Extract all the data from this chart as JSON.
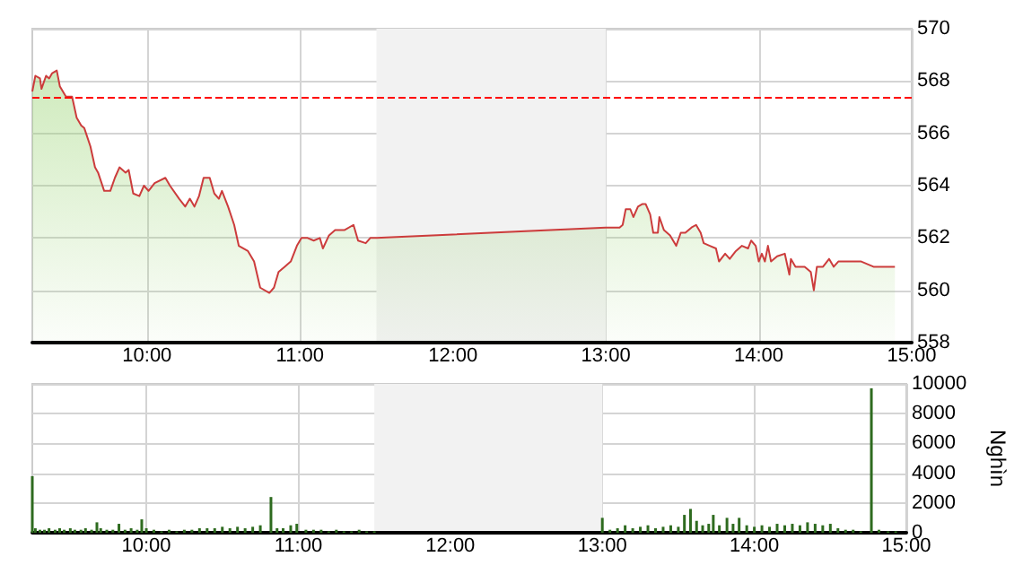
{
  "chart_data": [
    {
      "type": "area",
      "x": [
        9.25,
        9.27,
        9.3,
        9.31,
        9.34,
        9.36,
        9.38,
        9.41,
        9.43,
        9.47,
        9.51,
        9.54,
        9.57,
        9.59,
        9.63,
        9.66,
        9.68,
        9.72,
        9.76,
        9.79,
        9.82,
        9.86,
        9.88,
        9.91,
        9.95,
        9.98,
        10.01,
        10.05,
        10.12,
        10.15,
        10.21,
        10.25,
        10.28,
        10.31,
        10.34,
        10.37,
        10.41,
        10.44,
        10.47,
        10.49,
        10.53,
        10.57,
        10.6,
        10.66,
        10.7,
        10.74,
        10.8,
        10.83,
        10.86,
        10.9,
        10.94,
        10.98,
        11.01,
        11.05,
        11.09,
        11.13,
        11.15,
        11.19,
        11.23,
        11.29,
        11.35,
        11.38,
        11.43,
        11.46,
        11.5,
        13.0,
        13.09,
        13.11,
        13.13,
        13.16,
        13.18,
        13.21,
        13.24,
        13.26,
        13.29,
        13.31,
        13.34,
        13.35,
        13.38,
        13.42,
        13.46,
        13.49,
        13.52,
        13.56,
        13.59,
        13.62,
        13.64,
        13.68,
        13.72,
        13.74,
        13.78,
        13.81,
        13.85,
        13.89,
        13.93,
        13.95,
        13.98,
        14.0,
        14.02,
        14.04,
        14.06,
        14.08,
        14.12,
        14.17,
        14.2,
        14.21,
        14.24,
        14.3,
        14.34,
        14.36,
        14.38,
        14.42,
        14.46,
        14.49,
        14.52,
        14.58,
        14.67,
        14.75,
        14.89
      ],
      "series": [
        {
          "color": "#cc3c3c",
          "values": [
            567.6,
            568.2,
            568.1,
            567.7,
            568.2,
            568.1,
            568.3,
            568.4,
            567.8,
            567.4,
            567.4,
            566.6,
            566.3,
            566.2,
            565.5,
            564.7,
            564.5,
            563.8,
            563.8,
            564.3,
            564.7,
            564.5,
            564.6,
            563.7,
            563.6,
            564.0,
            563.8,
            564.1,
            564.3,
            564.0,
            563.5,
            563.2,
            563.5,
            563.2,
            563.6,
            564.3,
            564.3,
            563.7,
            563.5,
            563.8,
            563.2,
            562.5,
            561.7,
            561.5,
            561.1,
            560.1,
            559.9,
            560.1,
            560.7,
            560.9,
            561.1,
            561.7,
            562.0,
            562.0,
            561.9,
            562.0,
            561.6,
            562.1,
            562.3,
            562.3,
            562.5,
            561.9,
            561.8,
            562.0,
            562.0,
            562.4,
            562.4,
            562.5,
            563.1,
            563.1,
            562.8,
            563.2,
            563.3,
            563.3,
            562.9,
            562.2,
            562.2,
            562.8,
            562.3,
            562.1,
            561.7,
            562.2,
            562.2,
            562.4,
            562.5,
            562.2,
            561.8,
            561.7,
            561.6,
            561.1,
            561.4,
            561.2,
            561.5,
            561.7,
            561.6,
            561.9,
            561.7,
            561.1,
            561.4,
            561.1,
            561.7,
            561.1,
            561.3,
            561.4,
            560.6,
            561.2,
            560.9,
            560.9,
            560.7,
            560.0,
            560.9,
            560.9,
            561.2,
            560.9,
            561.1,
            561.1,
            561.1,
            560.9,
            560.9
          ]
        }
      ],
      "xlim": [
        9.25,
        15
      ],
      "xticks": [
        {
          "value": 10,
          "label": "10:00"
        },
        {
          "value": 11,
          "label": "11:00"
        },
        {
          "value": 12,
          "label": "12:00"
        },
        {
          "value": 13,
          "label": "13:00"
        },
        {
          "value": 14,
          "label": "14:00"
        },
        {
          "value": 15,
          "label": "15:00"
        }
      ],
      "ylim": [
        558,
        570
      ],
      "yticks": [
        558,
        560,
        562,
        564,
        566,
        568,
        570
      ],
      "ref_lines": [
        {
          "axis": "y",
          "value": 567.4,
          "color": "#ff0000",
          "line_style": "dashed"
        }
      ],
      "bands": [
        {
          "axis": "x",
          "from": 11.5,
          "to": 13,
          "color": "#f2f2f2"
        }
      ],
      "grid": true,
      "marker": "none"
    },
    {
      "type": "bar",
      "ylabel": "Nghìn",
      "x": [
        9.25,
        9.27,
        9.3,
        9.33,
        9.36,
        9.4,
        9.43,
        9.46,
        9.5,
        9.53,
        9.57,
        9.6,
        9.64,
        9.675,
        9.7,
        9.74,
        9.78,
        9.82,
        9.86,
        9.9,
        9.94,
        9.97,
        10.0,
        10.05,
        10.1,
        10.15,
        10.2,
        10.25,
        10.3,
        10.35,
        10.4,
        10.45,
        10.5,
        10.55,
        10.6,
        10.65,
        10.7,
        10.75,
        10.82,
        10.86,
        10.9,
        10.95,
        10.99,
        11.05,
        11.1,
        11.15,
        11.2,
        11.25,
        11.3,
        11.35,
        11.4,
        11.45,
        11.5,
        13.0,
        13.05,
        13.1,
        13.15,
        13.2,
        13.25,
        13.3,
        13.35,
        13.4,
        13.45,
        13.5,
        13.54,
        13.58,
        13.62,
        13.66,
        13.7,
        13.73,
        13.77,
        13.82,
        13.86,
        13.9,
        13.95,
        14.0,
        14.05,
        14.1,
        14.15,
        14.2,
        14.25,
        14.3,
        14.35,
        14.4,
        14.45,
        14.5,
        14.55,
        14.6,
        14.65,
        14.7,
        14.77,
        14.82,
        14.88,
        14.93
      ],
      "series": [
        {
          "color": "#2e6b1f",
          "values": [
            3800,
            300,
            200,
            200,
            300,
            200,
            300,
            200,
            300,
            200,
            200,
            300,
            200,
            700,
            300,
            200,
            200,
            600,
            200,
            300,
            200,
            900,
            300,
            200,
            100,
            200,
            100,
            200,
            200,
            300,
            300,
            300,
            400,
            300,
            400,
            300,
            400,
            500,
            2400,
            300,
            300,
            500,
            600,
            200,
            200,
            200,
            100,
            200,
            100,
            100,
            200,
            100,
            100,
            1000,
            200,
            300,
            500,
            300,
            400,
            500,
            300,
            400,
            500,
            400,
            1200,
            1600,
            800,
            500,
            600,
            1200,
            500,
            1000,
            600,
            1000,
            500,
            400,
            500,
            400,
            600,
            500,
            600,
            500,
            700,
            600,
            500,
            600,
            300,
            200,
            200,
            100,
            9700,
            200,
            100,
            100
          ]
        }
      ],
      "xlim": [
        9.25,
        15
      ],
      "xticks": [
        {
          "value": 10,
          "label": "10:00"
        },
        {
          "value": 11,
          "label": "11:00"
        },
        {
          "value": 12,
          "label": "12:00"
        },
        {
          "value": 13,
          "label": "13:00"
        },
        {
          "value": 14,
          "label": "14:00"
        },
        {
          "value": 15,
          "label": "15:00"
        }
      ],
      "ylim": [
        0,
        10000
      ],
      "yticks": [
        0,
        2000,
        4000,
        6000,
        8000,
        10000
      ],
      "bands": [
        {
          "axis": "x",
          "from": 11.5,
          "to": 13,
          "color": "#f2f2f2"
        }
      ],
      "grid": true
    }
  ]
}
